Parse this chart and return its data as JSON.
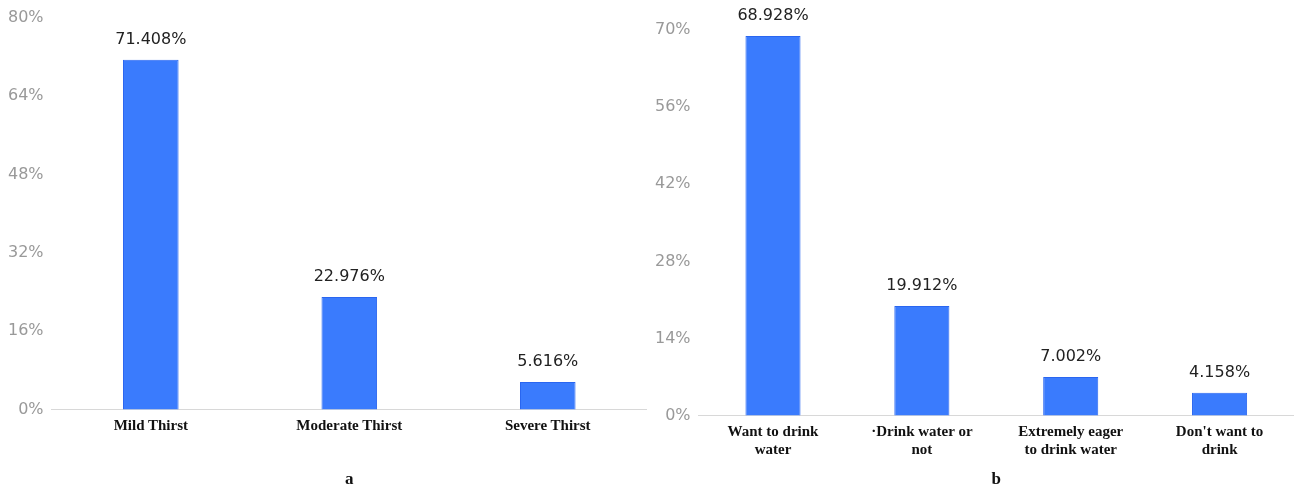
{
  "chart_data": [
    {
      "type": "bar",
      "xlabel": "a",
      "categories": [
        "Mild Thirst",
        "Moderate Thirst",
        "Severe Thirst"
      ],
      "values": [
        71.408,
        22.976,
        5.616
      ],
      "color": "#3a7bfd",
      "value_labels": [
        "71.408%",
        "22.976%",
        "5.616%"
      ],
      "ylim": [
        0,
        80
      ],
      "yticks": [
        {
          "value": 0,
          "label": "0%"
        },
        {
          "value": 16,
          "label": "16%"
        },
        {
          "value": 32,
          "label": "32%"
        },
        {
          "value": 48,
          "label": "48%"
        },
        {
          "value": 64,
          "label": "64%"
        },
        {
          "value": 80,
          "label": "80%"
        }
      ],
      "grid": false,
      "legend": false
    },
    {
      "type": "bar",
      "xlabel": "b",
      "categories": [
        "Want to drink water",
        "·Drink water or not",
        "Extremely eager to drink water",
        "Don't want to drink"
      ],
      "values": [
        68.928,
        19.912,
        7.002,
        4.158
      ],
      "color": "#3a7bfd",
      "value_labels": [
        "68.928%",
        "19.912%",
        "7.002%",
        "4.158%"
      ],
      "ylim": [
        0,
        70
      ],
      "yticks": [
        {
          "value": 0,
          "label": "0%"
        },
        {
          "value": 14,
          "label": "14%"
        },
        {
          "value": 28,
          "label": "28%"
        },
        {
          "value": 42,
          "label": "42%"
        },
        {
          "value": 56,
          "label": "56%"
        },
        {
          "value": 70,
          "label": "70%"
        }
      ],
      "grid": false,
      "legend": false
    }
  ]
}
